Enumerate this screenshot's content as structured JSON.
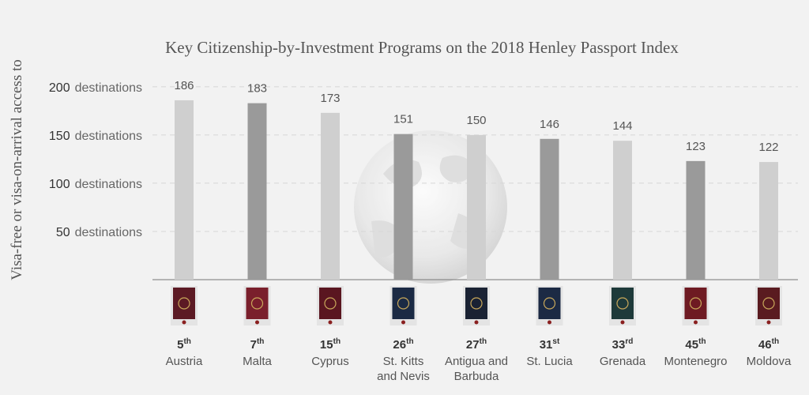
{
  "chart_data": {
    "type": "bar",
    "title": "Key Citizenship-by-Investment Programs on the 2018 Henley Passport Index",
    "ylabel": "Visa-free or visa-on-arrival access to",
    "ytick_unit": "destinations",
    "yticks": [
      50,
      100,
      150,
      200
    ],
    "ylim": [
      0,
      213
    ],
    "grid": true,
    "categories": [
      "Austria",
      "Malta",
      "Cyprus",
      "St. Kitts and Nevis",
      "Antigua and Barbuda",
      "St. Lucia",
      "Grenada",
      "Montenegro",
      "Moldova"
    ],
    "category_lines": [
      [
        "Austria"
      ],
      [
        "Malta"
      ],
      [
        "Cyprus"
      ],
      [
        "St. Kitts",
        "and Nevis"
      ],
      [
        "Antigua and",
        "Barbuda"
      ],
      [
        "St. Lucia"
      ],
      [
        "Grenada"
      ],
      [
        "Montenegro"
      ],
      [
        "Moldova"
      ]
    ],
    "values": [
      186,
      183,
      173,
      151,
      150,
      146,
      144,
      123,
      122
    ],
    "ranks": [
      5,
      7,
      15,
      26,
      27,
      31,
      33,
      45,
      46
    ],
    "rank_suffix": [
      "th",
      "th",
      "th",
      "th",
      "th",
      "st",
      "rd",
      "th",
      "th"
    ],
    "bar_colors": [
      "#cfcfcf",
      "#9a9a9a",
      "#cfcfcf",
      "#9a9a9a",
      "#cfcfcf",
      "#9a9a9a",
      "#cfcfcf",
      "#9a9a9a",
      "#cfcfcf"
    ],
    "passport_colors": [
      "#5c1a24",
      "#7a1f2c",
      "#5a1620",
      "#1b2a44",
      "#1a2233",
      "#1c2a44",
      "#1e3a3a",
      "#6e1a22",
      "#5a1b20"
    ]
  }
}
